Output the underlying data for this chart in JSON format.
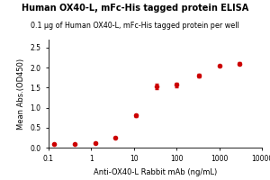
{
  "title": "Human OX40-L, mFc-His tagged protein ELISA",
  "subtitle": "0.1 μg of Human OX40-L, mFc-His tagged protein per well",
  "xlabel": "Anti-OX40-L Rabbit mAb (ng/mL)",
  "ylabel": "Mean Abs.(OD450)",
  "x_data": [
    0.137,
    0.411,
    1.235,
    3.704,
    11.11,
    33.33,
    100,
    333.3,
    1000,
    3000
  ],
  "y_data": [
    0.082,
    0.09,
    0.12,
    0.25,
    0.8,
    1.53,
    1.57,
    1.8,
    2.05,
    2.1
  ],
  "y_err": [
    0.005,
    0.005,
    0.006,
    0.01,
    0.03,
    0.06,
    0.06,
    0.04,
    0.03,
    0.03
  ],
  "line_color": "#cc0000",
  "marker_color": "#cc0000",
  "xlim": [
    0.1,
    10000
  ],
  "ylim": [
    0.0,
    2.7
  ],
  "yticks": [
    0.0,
    0.5,
    1.0,
    1.5,
    2.0,
    2.5
  ],
  "ytick_labels": [
    "0.0",
    "0.5",
    "1.0",
    "1.5",
    "2.0",
    "2.5"
  ],
  "xticks": [
    0.1,
    1,
    10,
    100,
    1000,
    10000
  ],
  "xtick_labels": [
    "0.1",
    "1",
    "10",
    "100",
    "1000",
    "10000"
  ],
  "title_fontsize": 7.0,
  "subtitle_fontsize": 5.8,
  "axis_label_fontsize": 6.0,
  "tick_fontsize": 5.5
}
